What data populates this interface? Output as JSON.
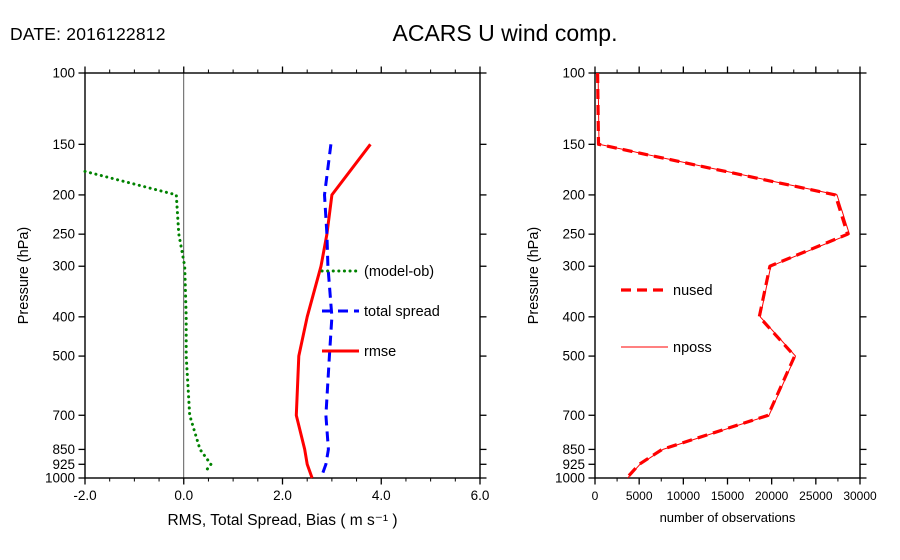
{
  "header": {
    "date_label": "DATE: 2016122812",
    "title": "ACARS U wind comp."
  },
  "chart_data": [
    {
      "id": "wind-stats",
      "type": "line",
      "title": "ACARS U wind comp.",
      "xlabel": "RMS, Total Spread, Bias ( m s⁻¹ )",
      "ylabel": "Pressure (hPa)",
      "xlim": [
        -2.0,
        6.0
      ],
      "x_ticks": [
        -2.0,
        0.0,
        2.0,
        4.0,
        6.0
      ],
      "x_tick_labels": [
        "-2.0",
        "0.0",
        "2.0",
        "4.0",
        "6.0"
      ],
      "x_minor_step": 0.5,
      "ylim": [
        100,
        1000
      ],
      "y_scale": "log",
      "y_ticks": [
        100,
        150,
        200,
        250,
        300,
        400,
        500,
        700,
        850,
        925,
        1000
      ],
      "grid": false,
      "zero_line": true,
      "legend_position": "inside-middle-right",
      "series": [
        {
          "name": "(model-ob)",
          "color": "#008200",
          "style": "dotted",
          "width": 3,
          "points": [
            [
              175,
              -2.0
            ],
            [
              200,
              -0.15
            ],
            [
              250,
              -0.1
            ],
            [
              300,
              0.02
            ],
            [
              400,
              0.05
            ],
            [
              500,
              0.05
            ],
            [
              700,
              0.12
            ],
            [
              850,
              0.33
            ],
            [
              925,
              0.55
            ],
            [
              960,
              0.45
            ]
          ]
        },
        {
          "name": "total spread",
          "color": "#0000ff",
          "style": "dashed",
          "width": 3,
          "points": [
            [
              150,
              2.98
            ],
            [
              200,
              2.85
            ],
            [
              250,
              2.9
            ],
            [
              300,
              2.92
            ],
            [
              400,
              3.0
            ],
            [
              500,
              2.95
            ],
            [
              700,
              2.88
            ],
            [
              850,
              2.93
            ],
            [
              925,
              2.88
            ],
            [
              1000,
              2.78
            ]
          ]
        },
        {
          "name": "rmse",
          "color": "#ff0000",
          "style": "solid",
          "width": 3,
          "points": [
            [
              150,
              3.78
            ],
            [
              200,
              3.0
            ],
            [
              250,
              2.9
            ],
            [
              300,
              2.78
            ],
            [
              400,
              2.5
            ],
            [
              500,
              2.33
            ],
            [
              700,
              2.28
            ],
            [
              850,
              2.45
            ],
            [
              925,
              2.5
            ],
            [
              1000,
              2.6
            ]
          ]
        }
      ]
    },
    {
      "id": "obs-counts",
      "type": "line",
      "title": "",
      "xlabel": "number of observations",
      "ylabel": "Pressure (hPa)",
      "xlim": [
        0,
        30000
      ],
      "x_ticks": [
        0,
        5000,
        10000,
        15000,
        20000,
        25000,
        30000
      ],
      "x_tick_labels": [
        "0",
        "5000",
        "10000",
        "15000",
        "20000",
        "25000",
        "30000"
      ],
      "x_minor_step": 2500,
      "ylim": [
        100,
        1000
      ],
      "y_scale": "log",
      "y_ticks": [
        100,
        150,
        200,
        250,
        300,
        400,
        500,
        700,
        850,
        925,
        1000
      ],
      "grid": false,
      "zero_line": false,
      "legend_position": "inside-middle-left",
      "series": [
        {
          "name": "nused",
          "color": "#ff0000",
          "style": "dashed",
          "width": 3.2,
          "points": [
            [
              100,
              300
            ],
            [
              150,
              400
            ],
            [
              200,
              27200
            ],
            [
              250,
              28600
            ],
            [
              300,
              19800
            ],
            [
              400,
              18600
            ],
            [
              500,
              22600
            ],
            [
              700,
              19600
            ],
            [
              850,
              7600
            ],
            [
              925,
              5000
            ],
            [
              1000,
              3600
            ]
          ]
        },
        {
          "name": "nposs",
          "color": "#ff0000",
          "style": "thin",
          "width": 1,
          "points": [
            [
              100,
              350
            ],
            [
              150,
              450
            ],
            [
              200,
              27400
            ],
            [
              250,
              28800
            ],
            [
              300,
              19900
            ],
            [
              400,
              18700
            ],
            [
              500,
              22700
            ],
            [
              700,
              19700
            ],
            [
              850,
              7700
            ],
            [
              925,
              5100
            ],
            [
              1000,
              3700
            ]
          ]
        }
      ]
    }
  ]
}
